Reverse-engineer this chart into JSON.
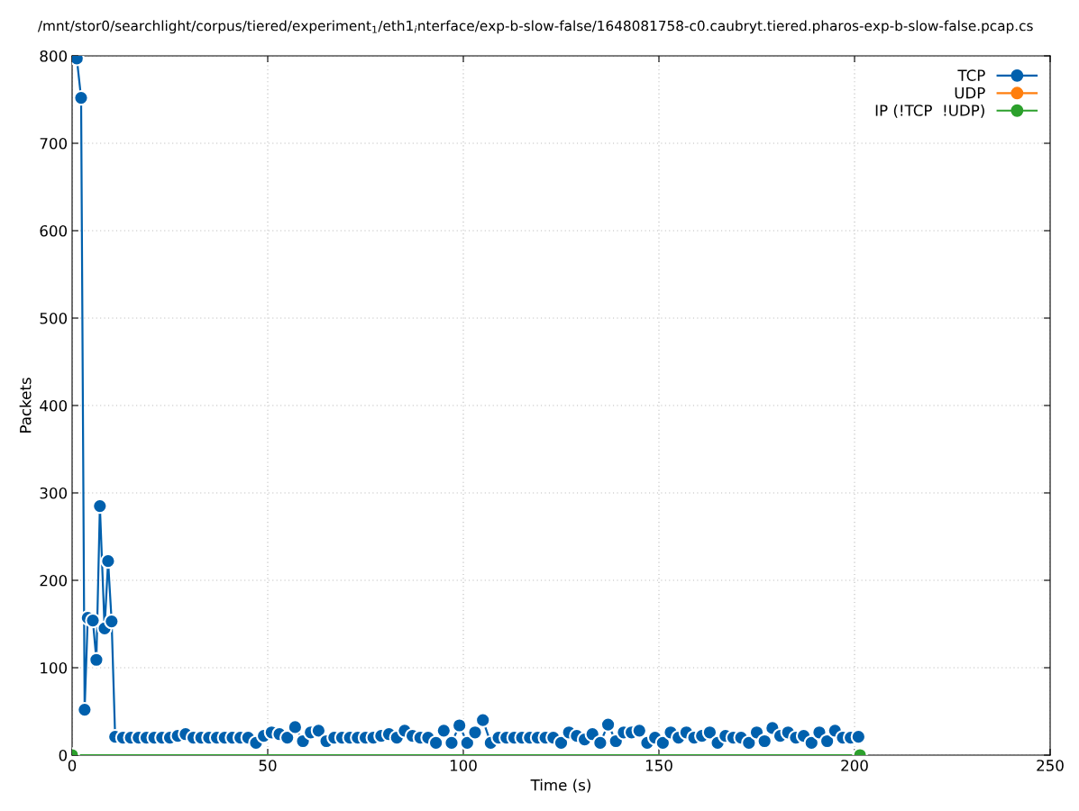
{
  "chart_data": {
    "type": "line",
    "title": "/mnt/stor0/searchlight/corpus/tiered/experiment$_{1}$/eth1$_{i}$nterface/exp-b-slow-false/1648081758-c0.caubryt.tiered.pharos-exp-b-slow-false.pcap.cs",
    "xlabel": "Time (s)",
    "ylabel": "Packets",
    "xlim": [
      0,
      250
    ],
    "xticks": [
      0,
      50,
      100,
      150,
      200,
      250
    ],
    "ylim": [
      0,
      800
    ],
    "yticks": [
      0,
      100,
      200,
      300,
      400,
      500,
      600,
      700,
      800
    ],
    "grid": true,
    "legend": "top right",
    "marker": "circle",
    "line_style": "solid",
    "series": [
      {
        "name": "TCP",
        "color": "#0060ad",
        "x": [
          1.2,
          2.3,
          3.2,
          4,
          5.3,
          6.2,
          7.1,
          8.3,
          9.2,
          10.1,
          11,
          13,
          15,
          17,
          19,
          21,
          23,
          25,
          27,
          29,
          31,
          33,
          35,
          37,
          39,
          41,
          43,
          45,
          47,
          49,
          51,
          53,
          55,
          57,
          59,
          61,
          63,
          65,
          67,
          69,
          71,
          73,
          75,
          77,
          79,
          81,
          83,
          85,
          87,
          89,
          91,
          93,
          95,
          97,
          99,
          101,
          103,
          105,
          107,
          109,
          111,
          113,
          115,
          117,
          119,
          121,
          123,
          125,
          127,
          129,
          131,
          133,
          135,
          137,
          139,
          141,
          143,
          145,
          147,
          149,
          151,
          153,
          155,
          157,
          159,
          161,
          163,
          165,
          167,
          169,
          171,
          173,
          175,
          177,
          179,
          181,
          183,
          185,
          187,
          189,
          191,
          193,
          195,
          197,
          199,
          201
        ],
        "values": [
          797,
          752,
          52,
          157,
          154,
          109,
          285,
          145,
          222,
          153,
          21,
          20,
          20,
          20,
          20,
          20,
          20,
          20,
          22,
          24,
          20,
          20,
          20,
          20,
          20,
          20,
          20,
          20,
          14,
          22,
          26,
          24,
          20,
          32,
          16,
          26,
          28,
          16,
          20,
          20,
          20,
          20,
          20,
          20,
          22,
          24,
          20,
          28,
          22,
          20,
          20,
          14,
          28,
          14,
          34,
          14,
          26,
          40,
          14,
          20,
          20,
          20,
          20,
          20,
          20,
          20,
          20,
          14,
          26,
          22,
          18,
          24,
          14,
          35,
          16,
          26,
          26,
          28,
          14,
          20,
          14,
          26,
          20,
          26,
          20,
          22,
          26,
          14,
          22,
          20,
          20,
          14,
          26,
          16,
          31,
          22,
          26,
          20,
          22,
          14,
          26,
          16,
          28,
          20,
          20,
          21
        ]
      },
      {
        "name": "UDP",
        "color": "#ff7f0e"
      },
      {
        "name": "IP (!TCP  !UDP)",
        "color": "#2ca02c",
        "x": [
          0,
          201.4
        ],
        "values": [
          0,
          0
        ]
      }
    ]
  }
}
